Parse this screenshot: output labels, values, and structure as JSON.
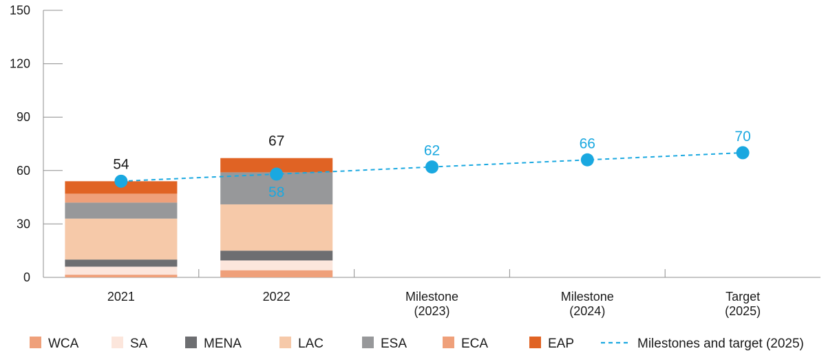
{
  "chart_data": {
    "type": "bar",
    "title": "",
    "xlabel": "",
    "ylabel": "",
    "ylim": [
      0,
      150
    ],
    "yticks": [
      0,
      30,
      60,
      90,
      120,
      150
    ],
    "grid": false,
    "legend_position": "bottom",
    "categories": [
      [
        "2021"
      ],
      [
        "2022"
      ],
      [
        "Milestone",
        "(2023)"
      ],
      [
        "Milestone",
        "(2024)"
      ],
      [
        "Target",
        "(2025)"
      ]
    ],
    "series": [
      {
        "name": "WCA",
        "color": "#EFA07A",
        "values": [
          1.5,
          4,
          null,
          null,
          null
        ]
      },
      {
        "name": "SA",
        "color": "#FCE6DC",
        "values": [
          4.5,
          5.5,
          null,
          null,
          null
        ]
      },
      {
        "name": "MENA",
        "color": "#6D6E71",
        "values": [
          4,
          5.5,
          null,
          null,
          null
        ]
      },
      {
        "name": "LAC",
        "color": "#F6C9A9",
        "values": [
          23,
          26,
          null,
          null,
          null
        ]
      },
      {
        "name": "ESA",
        "color": "#97989A",
        "values": [
          9,
          18,
          null,
          null,
          null
        ]
      },
      {
        "name": "ECA",
        "color": "#EFA07A",
        "values": [
          5,
          0,
          null,
          null,
          null
        ]
      },
      {
        "name": "EAP",
        "color": "#E06324",
        "values": [
          7,
          8,
          null,
          null,
          null
        ]
      }
    ],
    "totals": [
      54,
      67,
      null,
      null,
      null
    ],
    "line_series": {
      "name": "Milestones and target (2025)",
      "color": "#1AA8E0",
      "values": [
        54,
        58,
        62,
        66,
        70
      ],
      "labels": [
        "",
        "58",
        "62",
        "66",
        "70"
      ]
    }
  }
}
